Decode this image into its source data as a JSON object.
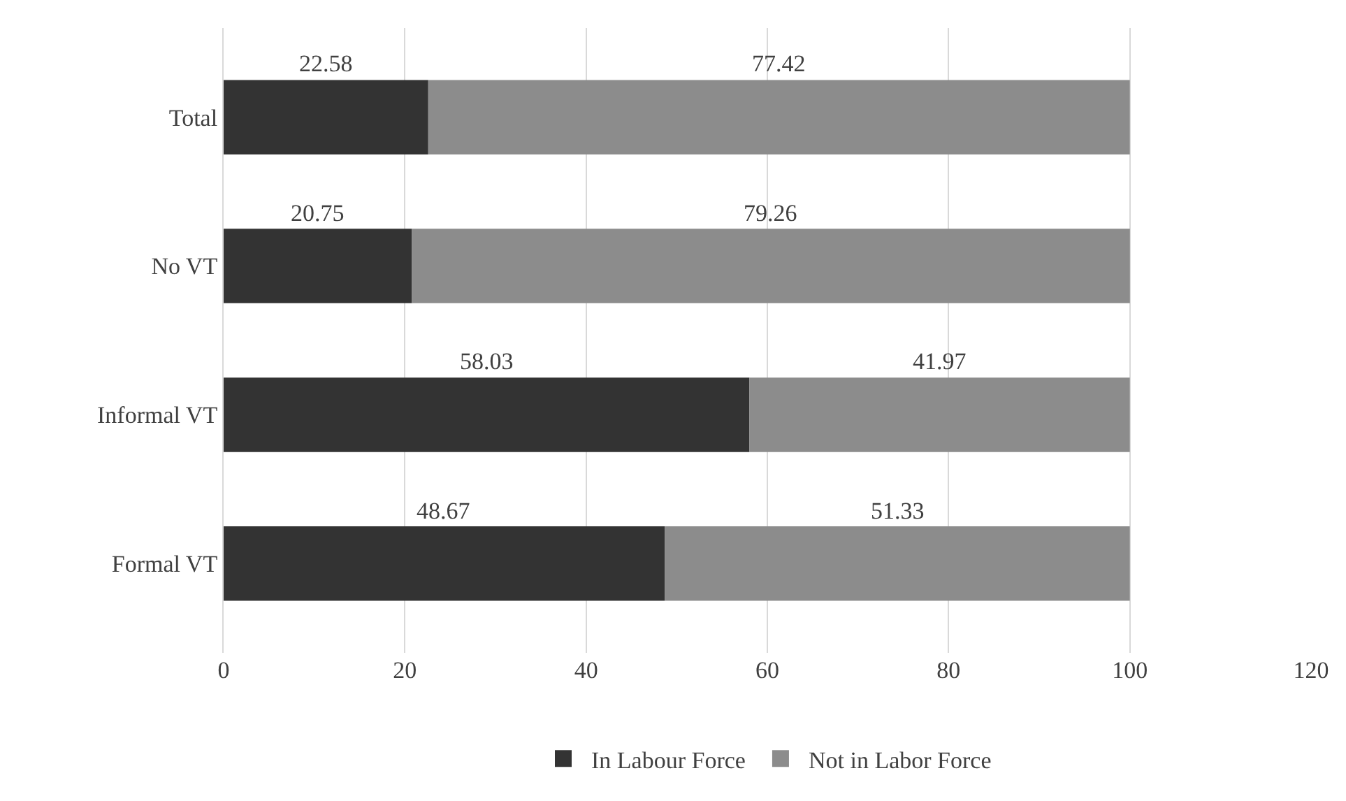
{
  "chart_data": {
    "type": "bar",
    "orientation": "horizontal",
    "stacked": true,
    "categories": [
      "Total",
      "No VT",
      "Informal VT",
      "Formal VT"
    ],
    "series": [
      {
        "name": "In Labour Force",
        "color": "#333333",
        "values": [
          22.58,
          20.75,
          58.03,
          48.67
        ]
      },
      {
        "name": "Not in Labor Force",
        "color": "#8c8c8c",
        "values": [
          77.42,
          79.26,
          41.97,
          51.33
        ]
      }
    ],
    "xlim": [
      0,
      120
    ],
    "xticks": [
      0,
      20,
      40,
      60,
      80,
      100,
      120
    ],
    "grid": "x",
    "legend": "bottom",
    "data_labels": true
  }
}
